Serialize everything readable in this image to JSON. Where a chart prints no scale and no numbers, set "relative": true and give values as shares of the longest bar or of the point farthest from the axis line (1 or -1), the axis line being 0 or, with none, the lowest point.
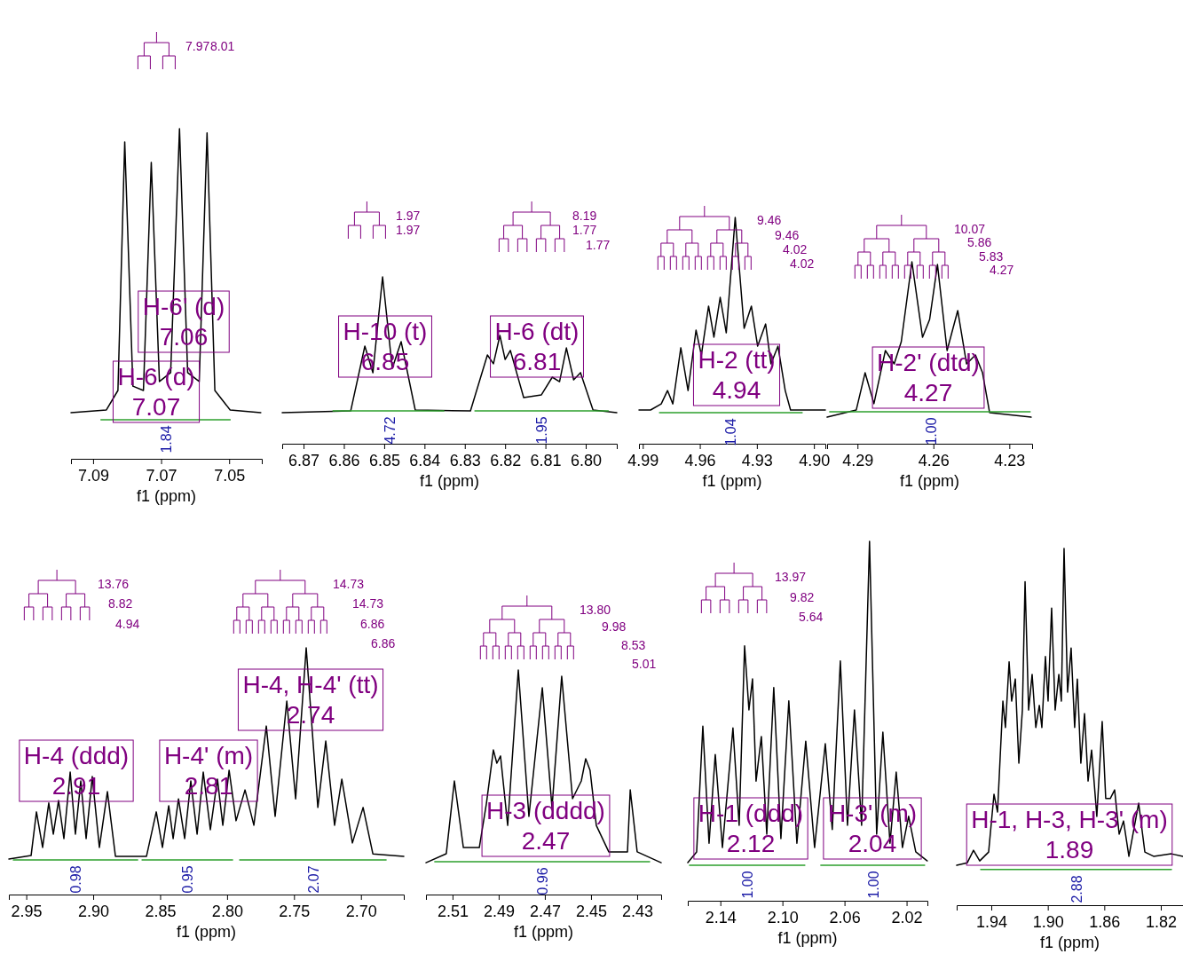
{
  "chart_data": [
    {
      "type": "line",
      "relative": true,
      "xlim": [
        7.0965,
        7.0404
      ],
      "xticks": [
        7.09,
        7.07,
        7.05
      ],
      "xlabel": "f1 (ppm)",
      "series": [
        {
          "color": "#000000",
          "x": [
            7.0965,
            7.0861,
            7.0827,
            7.0807,
            7.0783,
            7.0752,
            7.0729,
            7.0705,
            7.0672,
            7.0646,
            7.0622,
            7.0588,
            7.0565,
            7.0542,
            7.0497,
            7.0407
          ],
          "values": [
            0.14,
            0.148,
            0.207,
            0.96,
            0.22,
            0.207,
            0.898,
            0.234,
            0.261,
            1.0,
            0.261,
            0.234,
            0.987,
            0.207,
            0.148,
            0.14
          ]
        },
        {
          "color": "#2ca02c",
          "x": [
            7.0877,
            7.0497
          ],
          "values": [
            0.118,
            0.118
          ]
        }
      ],
      "annotations": [
        "H-6' (d)\n7.06",
        "H-6 (d)\n7.07",
        "7.97",
        "8.01",
        "1.84"
      ]
    },
    {
      "type": "line",
      "relative": true,
      "xlim": [
        6.8753,
        6.7923
      ],
      "xticks": [
        6.87,
        6.86,
        6.85,
        6.84,
        6.83,
        6.82,
        6.81,
        {
          "value": 6.8,
          "label": "6.80"
        }
      ],
      "xlabel": "f1 (ppm)",
      "series": [
        {
          "color": "#000000",
          "x": [
            6.8753,
            6.8583,
            6.8548,
            6.8528,
            6.8504,
            6.848,
            6.8458,
            6.8423,
            6.8286,
            6.8244,
            6.8229,
            6.8213,
            6.82,
            6.8187,
            6.8154,
            6.811,
            6.8083,
            6.8065,
            6.8048,
            6.803,
            6.8013,
            6.7982,
            6.7923
          ],
          "values": [
            0.186,
            0.197,
            0.585,
            0.426,
            1.0,
            0.452,
            0.612,
            0.202,
            0.197,
            0.532,
            0.479,
            0.649,
            0.505,
            0.559,
            0.277,
            0.293,
            0.399,
            0.372,
            0.574,
            0.383,
            0.426,
            0.202,
            0.186
          ]
        },
        {
          "color": "#2ca02c",
          "x": [
            6.8627,
            6.8352
          ],
          "values": [
            0.197,
            0.197
          ]
        },
        {
          "color": "#2ca02c",
          "x": [
            6.8275,
            6.7944
          ],
          "values": [
            0.197,
            0.197
          ]
        }
      ],
      "annotations": [
        "H-10 (t)\n6.85",
        "1.97",
        "1.97",
        "H-6 (dt)\n6.81",
        "8.19",
        "1.77",
        "1.77",
        "4.72",
        "1.95"
      ]
    },
    {
      "type": "line",
      "relative": true,
      "xlim": [
        4.992,
        4.894
      ],
      "xticks": [
        4.99,
        4.96,
        4.93,
        {
          "value": 4.9,
          "label": "4.90"
        }
      ],
      "xlabel": "f1 (ppm)",
      "series": [
        {
          "color": "#000000",
          "x": [
            4.992,
            4.9859,
            4.9803,
            4.977,
            4.9742,
            4.97,
            4.9662,
            4.962,
            4.9592,
            4.9554,
            4.9526,
            4.9493,
            4.9461,
            4.9414,
            4.9367,
            4.9329,
            4.9296,
            4.9254,
            4.9226,
            4.9189,
            4.9151,
            4.9123,
            4.894
          ],
          "values": [
            0.149,
            0.149,
            0.176,
            0.235,
            0.176,
            0.424,
            0.235,
            0.502,
            0.392,
            0.608,
            0.471,
            0.647,
            0.49,
            1.0,
            0.51,
            0.608,
            0.431,
            0.529,
            0.353,
            0.431,
            0.235,
            0.149,
            0.149
          ]
        },
        {
          "color": "#2ca02c",
          "x": [
            4.9812,
            4.9062
          ],
          "values": [
            0.137,
            0.137
          ]
        }
      ],
      "annotations": [
        "H-2 (tt)\n4.94",
        "9.46",
        "9.46",
        "4.02",
        "4.02",
        "1.04"
      ]
    },
    {
      "type": "line",
      "relative": true,
      "xlim": [
        4.302,
        4.221
      ],
      "xticks": [
        4.29,
        4.26,
        4.23
      ],
      "xlabel": "f1 (ppm)",
      "series": [
        {
          "color": "#000000",
          "x": [
            4.302,
            4.2905,
            4.287,
            4.2835,
            4.279,
            4.2755,
            4.2727,
            4.2685,
            4.2643,
            4.2615,
            4.2584,
            4.2546,
            4.2504,
            4.2469,
            4.2434,
            4.2406,
            4.2378,
            4.2214
          ],
          "values": [
            0.146,
            0.185,
            0.39,
            0.22,
            0.512,
            0.439,
            0.561,
            1.0,
            0.585,
            0.683,
            0.985,
            0.512,
            0.732,
            0.439,
            0.488,
            0.39,
            0.171,
            0.146
          ]
        },
        {
          "color": "#2ca02c",
          "x": [
            4.301,
            4.2218
          ],
          "values": [
            0.176,
            0.176
          ]
        }
      ],
      "annotations": [
        "H-2' (dtd)\n4.27",
        "10.07",
        "5.86",
        "5.83",
        "4.27",
        "1.00"
      ]
    },
    {
      "type": "line",
      "relative": true,
      "xlim": [
        2.963,
        2.668
      ],
      "xticks": [
        2.95,
        {
          "value": 2.9,
          "label": "2.90"
        },
        2.85,
        {
          "value": 2.8,
          "label": "2.80"
        },
        2.75,
        {
          "value": 2.7,
          "label": "2.70"
        }
      ],
      "xlabel": "f1 (ppm)",
      "series": [
        {
          "color": "#000000",
          "x": [
            2.963,
            2.9464,
            2.9424,
            2.9378,
            2.9332,
            2.9298,
            2.9259,
            2.9219,
            2.9172,
            2.9133,
            2.9093,
            2.9053,
            2.9007,
            2.8954,
            2.8894,
            2.8834,
            2.8602,
            2.8529,
            2.8483,
            2.8436,
            2.8403,
            2.8363,
            2.8317,
            2.8271,
            2.8224,
            2.8178,
            2.8125,
            2.8072,
            2.8032,
            2.7985,
            2.7933,
            2.7866,
            2.78,
            2.7707,
            2.7641,
            2.7554,
            2.7488,
            2.7409,
            2.7322,
            2.7263,
            2.7197,
            2.7143,
            2.7064,
            2.6984,
            2.6911,
            2.668
          ],
          "values": [
            0.144,
            0.158,
            0.335,
            0.191,
            0.371,
            0.245,
            0.381,
            0.227,
            0.496,
            0.245,
            0.46,
            0.227,
            0.478,
            0.191,
            0.417,
            0.155,
            0.155,
            0.335,
            0.191,
            0.36,
            0.227,
            0.388,
            0.227,
            0.46,
            0.245,
            0.496,
            0.263,
            0.468,
            0.281,
            0.504,
            0.299,
            0.424,
            0.281,
            0.683,
            0.317,
            0.784,
            0.388,
            1.0,
            0.353,
            0.622,
            0.281,
            0.468,
            0.209,
            0.353,
            0.165,
            0.155
          ]
        },
        {
          "color": "#2ca02c",
          "x": [
            2.9597,
            2.8668
          ],
          "values": [
            0.14,
            0.14
          ]
        },
        {
          "color": "#2ca02c",
          "x": [
            2.8635,
            2.7959
          ],
          "values": [
            0.14,
            0.14
          ]
        },
        {
          "color": "#2ca02c",
          "x": [
            2.7906,
            2.6812
          ],
          "values": [
            0.14,
            0.14
          ]
        }
      ],
      "annotations": [
        "H-4 (ddd)\n2.91",
        "13.76",
        "8.82",
        "4.94",
        "H-4' (m)\n2.81",
        "H-4, H-4' (tt)\n2.74",
        "14.73",
        "14.73",
        "6.86",
        "6.86",
        "0.98",
        "0.95",
        "2.07"
      ]
    },
    {
      "type": "line",
      "relative": true,
      "xlim": [
        2.5215,
        2.4196
      ],
      "xticks": [
        2.51,
        2.49,
        2.47,
        2.45,
        2.43
      ],
      "xlabel": "f1 (ppm)",
      "series": [
        {
          "color": "#000000",
          "x": [
            2.5215,
            2.5127,
            2.5092,
            2.5053,
            2.4984,
            2.4953,
            2.4923,
            2.4908,
            2.4892,
            2.4861,
            2.4815,
            2.4769,
            2.4711,
            2.4669,
            2.4627,
            2.458,
            2.4542,
            2.4523,
            2.4504,
            2.4477,
            2.4423,
            2.4342,
            2.433,
            2.43,
            2.4196
          ],
          "values": [
            0.142,
            0.182,
            0.506,
            0.209,
            0.209,
            0.407,
            0.644,
            0.585,
            0.617,
            0.308,
            1.0,
            0.348,
            0.921,
            0.387,
            0.972,
            0.427,
            0.506,
            0.605,
            0.553,
            0.308,
            0.19,
            0.19,
            0.466,
            0.19,
            0.142
          ]
        },
        {
          "color": "#2ca02c",
          "x": [
            2.5177,
            2.4246
          ],
          "values": [
            0.146,
            0.146
          ]
        }
      ],
      "annotations": [
        "H-3 (dddd)\n2.47",
        "13.80",
        "9.98",
        "8.53",
        "5.01",
        "0.96"
      ]
    },
    {
      "type": "line",
      "relative": true,
      "xlim": [
        2.161,
        2.0066
      ],
      "xticks": [
        2.14,
        {
          "value": 2.1,
          "label": "2.10"
        },
        2.06,
        2.02
      ],
      "xlabel": "f1 (ppm)",
      "series": [
        {
          "color": "#000000",
          "x": [
            2.161,
            2.1553,
            2.1513,
            2.1473,
            2.1433,
            2.1387,
            2.1319,
            2.1279,
            2.1244,
            2.1216,
            2.1193,
            2.117,
            2.1136,
            2.1101,
            2.1056,
            2.101,
            2.0959,
            2.0907,
            2.085,
            2.0793,
            2.0724,
            2.0679,
            2.0627,
            2.0581,
            2.0536,
            2.049,
            2.0439,
            2.0393,
            2.0353,
            2.0307,
            2.0267,
            2.0227,
            2.0187,
            2.0141,
            2.0067
          ],
          "values": [
            0.106,
            0.136,
            0.486,
            0.16,
            0.407,
            0.148,
            0.481,
            0.21,
            0.709,
            0.531,
            0.617,
            0.333,
            0.457,
            0.185,
            0.593,
            0.173,
            0.556,
            0.16,
            0.444,
            0.148,
            0.437,
            0.198,
            0.667,
            0.21,
            0.531,
            0.21,
            1.0,
            0.185,
            0.469,
            0.16,
            0.358,
            0.148,
            0.235,
            0.136,
            0.111
          ]
        },
        {
          "color": "#2ca02c",
          "x": [
            2.1599,
            2.0856
          ],
          "values": [
            0.099,
            0.099
          ]
        },
        {
          "color": "#2ca02c",
          "x": [
            2.0753,
            2.0084
          ],
          "values": [
            0.099,
            0.099
          ]
        }
      ],
      "annotations": [
        "H-1 (ddd)\n2.12",
        "13.97",
        "9.82",
        "5.64",
        "H-3' (m)\n2.04",
        "1.00",
        "1.00"
      ]
    },
    {
      "type": "line",
      "relative": true,
      "xlim": [
        1.9645,
        1.8043
      ],
      "xticks": [
        1.94,
        {
          "value": 1.9,
          "label": "1.90"
        },
        1.86,
        1.82
      ],
      "xlabel": "f1 (ppm)",
      "series": [
        {
          "color": "#000000",
          "x": [
            1.9645,
            1.957,
            1.9526,
            1.9482,
            1.9419,
            1.9381,
            1.9356,
            1.9318,
            1.93,
            1.9274,
            1.9256,
            1.923,
            1.9205,
            1.918,
            1.9161,
            1.9136,
            1.9111,
            1.9085,
            1.906,
            1.9042,
            1.9017,
            1.8998,
            1.8973,
            1.8948,
            1.8922,
            1.8904,
            1.8885,
            1.886,
            1.8835,
            1.881,
            1.8791,
            1.8766,
            1.874,
            1.8715,
            1.869,
            1.8653,
            1.8615,
            1.859,
            1.8558,
            1.8527,
            1.8495,
            1.8464,
            1.8426,
            1.8357,
            1.8313,
            1.8251,
            1.8125,
            1.8043
          ],
          "values": [
            0.112,
            0.119,
            0.154,
            0.124,
            0.149,
            0.311,
            0.261,
            0.572,
            0.498,
            0.682,
            0.572,
            0.634,
            0.398,
            0.547,
            0.907,
            0.547,
            0.647,
            0.498,
            0.56,
            0.498,
            0.697,
            0.572,
            0.833,
            0.547,
            0.647,
            0.572,
            1.0,
            0.597,
            0.721,
            0.498,
            0.634,
            0.398,
            0.537,
            0.348,
            0.435,
            0.249,
            0.515,
            0.299,
            0.299,
            0.323,
            0.199,
            0.236,
            0.137,
            0.286,
            0.149,
            0.137,
            0.144,
            0.137
          ]
        },
        {
          "color": "#2ca02c",
          "x": [
            1.9475,
            1.8125
          ],
          "values": [
            0.1,
            0.1
          ]
        }
      ],
      "annotations": [
        "H-1, H-3, H-3' (m)\n1.89",
        "2.88"
      ]
    }
  ]
}
